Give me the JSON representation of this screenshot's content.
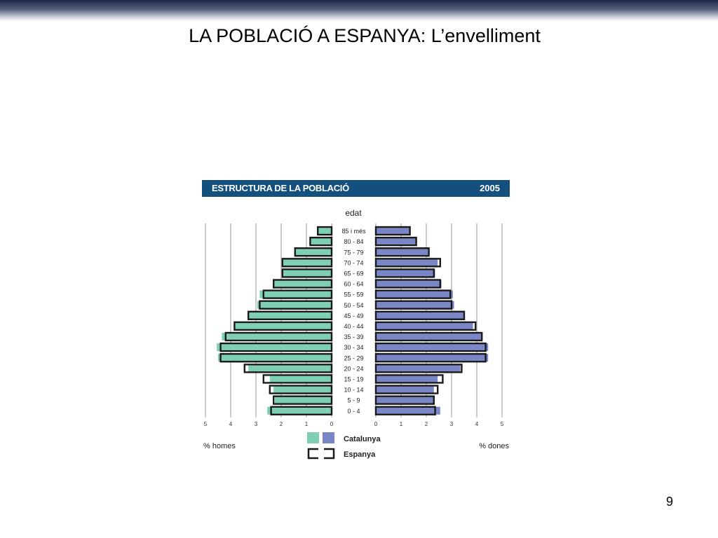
{
  "slide": {
    "title": "LA POBLACIÓ A ESPANYA: L’envelliment",
    "page_number": "9"
  },
  "chart_data": {
    "type": "bar",
    "title": "ESTRUCTURA DE LA POBLACIÓ",
    "year": "2005",
    "category_label": "edat",
    "categories": [
      "85 i més",
      "80 - 84",
      "75 - 79",
      "70 - 74",
      "65 - 69",
      "60 - 64",
      "55 - 59",
      "50 - 54",
      "45 - 49",
      "40 - 44",
      "35 - 39",
      "30 - 34",
      "25 - 29",
      "20 - 24",
      "15 - 19",
      "10 - 14",
      "5 - 9",
      "0 - 4"
    ],
    "xlabel_left": "% homes",
    "xlabel_right": "% dones",
    "xlim": [
      0,
      5
    ],
    "x_ticks": [
      0,
      1,
      2,
      3,
      4,
      5
    ],
    "legend": {
      "catalunya_label": "Catalunya",
      "espanya_label": "Espanya"
    },
    "colors": {
      "homes_catalunya": "#7fcfb5",
      "dones_catalunya": "#7a86c6",
      "espanya_outline": "#1a1a1a",
      "header_bg": "#14507d",
      "grid": "#b8b8b8"
    },
    "series": [
      {
        "name": "Catalunya",
        "side": "homes",
        "values": [
          0.55,
          0.85,
          1.45,
          1.95,
          1.95,
          2.3,
          2.85,
          2.95,
          3.3,
          3.85,
          4.35,
          4.55,
          4.5,
          3.3,
          2.45,
          2.3,
          2.25,
          2.55
        ]
      },
      {
        "name": "Espanya",
        "side": "homes",
        "values": [
          0.55,
          0.85,
          1.45,
          1.95,
          1.95,
          2.3,
          2.7,
          2.85,
          3.3,
          3.85,
          4.2,
          4.4,
          4.4,
          3.45,
          2.7,
          2.45,
          2.3,
          2.4
        ]
      },
      {
        "name": "Catalunya",
        "side": "dones",
        "values": [
          1.35,
          1.6,
          2.1,
          2.45,
          2.35,
          2.6,
          3.05,
          3.1,
          3.5,
          3.85,
          4.2,
          4.45,
          4.45,
          3.35,
          2.45,
          2.3,
          2.3,
          2.55
        ]
      },
      {
        "name": "Espanya",
        "side": "dones",
        "values": [
          1.35,
          1.6,
          2.1,
          2.55,
          2.3,
          2.55,
          2.95,
          3.0,
          3.5,
          3.95,
          4.2,
          4.35,
          4.35,
          3.4,
          2.65,
          2.45,
          2.3,
          2.35
        ]
      }
    ]
  }
}
